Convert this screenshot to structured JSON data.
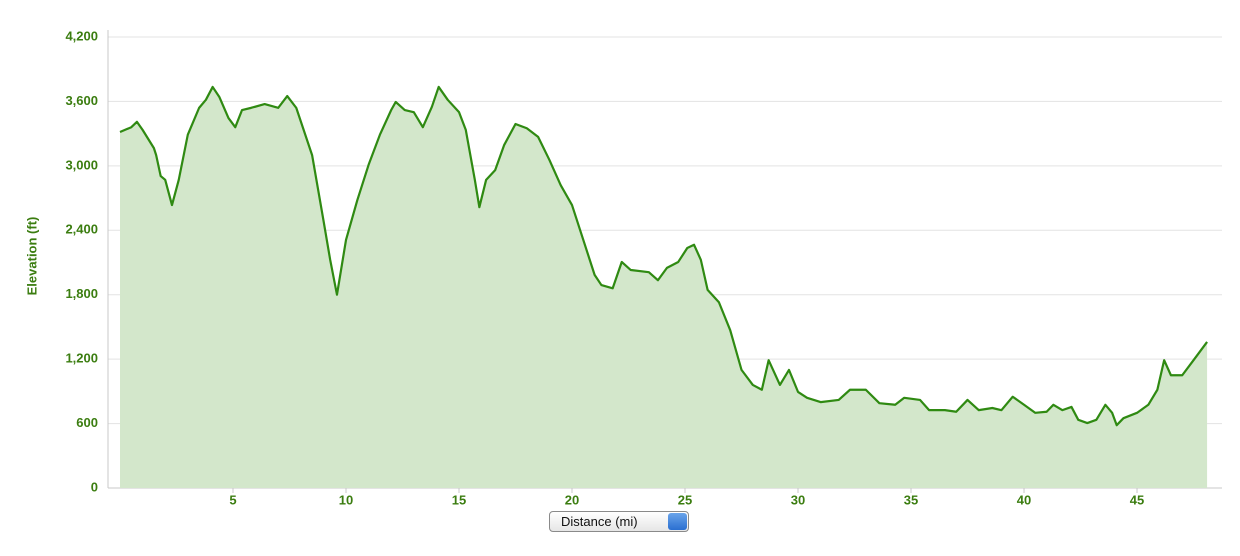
{
  "chart_data": {
    "type": "area",
    "ylabel": "Elevation (ft)",
    "xlabel": "Distance (mi)",
    "xlim": [
      0,
      48.76
    ],
    "ylim": [
      0,
      4200
    ],
    "xticks": [
      5,
      10,
      15,
      20,
      25,
      30,
      35,
      40,
      45
    ],
    "yticks": [
      0,
      {
        "value": 600,
        "label": "600"
      },
      {
        "value": 1200,
        "label": "1,200"
      },
      {
        "value": 1800,
        "label": "1,800"
      },
      {
        "value": 2400,
        "label": "2,400"
      },
      {
        "value": 3000,
        "label": "3,000"
      },
      {
        "value": 3600,
        "label": "3,600"
      },
      {
        "value": 4200,
        "label": "4,200"
      }
    ],
    "grid": true,
    "color": "#2f8a12",
    "fill": "#d3e7cb",
    "x": [
      0,
      0.5,
      0.75,
      1,
      1.5,
      1.6,
      1.8,
      2.0,
      2.3,
      2.6,
      3,
      3.5,
      3.8,
      4.1,
      4.4,
      4.8,
      5.1,
      5.4,
      5.8,
      6.4,
      7,
      7.4,
      7.8,
      8.5,
      9,
      9.3,
      9.6,
      10,
      10.5,
      11,
      11.5,
      12,
      12.2,
      12.6,
      13,
      13.4,
      13.8,
      14.1,
      14.5,
      15,
      15.3,
      15.7,
      15.9,
      16.2,
      16.6,
      17,
      17.5,
      18,
      18.5,
      19,
      19.5,
      20,
      20.5,
      21,
      21.3,
      21.8,
      22.2,
      22.6,
      23.4,
      23.8,
      24.2,
      24.7,
      25.1,
      25.4,
      25.7,
      26,
      26.5,
      27,
      27.5,
      28,
      28.4,
      28.7,
      29.2,
      29.6,
      30,
      30.4,
      31,
      31.8,
      32.3,
      33,
      33.6,
      34.3,
      34.7,
      35.4,
      35.8,
      36.5,
      37,
      37.5,
      38,
      38.6,
      39,
      39.5,
      40,
      40.5,
      41,
      41.3,
      41.7,
      42.1,
      42.4,
      42.8,
      43.2,
      43.6,
      43.9,
      44.1,
      44.4,
      45,
      45.5,
      45.9,
      46.2,
      46.5,
      47,
      47.5,
      48.1
    ],
    "values": [
      3315,
      3360,
      3410,
      3335,
      3165,
      3100,
      2905,
      2870,
      2635,
      2870,
      3290,
      3540,
      3615,
      3735,
      3640,
      3445,
      3360,
      3520,
      3540,
      3575,
      3540,
      3650,
      3540,
      3100,
      2495,
      2125,
      1800,
      2310,
      2680,
      3010,
      3290,
      3520,
      3595,
      3520,
      3500,
      3360,
      3550,
      3735,
      3615,
      3500,
      3335,
      2870,
      2615,
      2870,
      2960,
      3195,
      3390,
      3350,
      3270,
      3055,
      2820,
      2635,
      2310,
      1985,
      1890,
      1860,
      2105,
      2030,
      2010,
      1935,
      2050,
      2105,
      2235,
      2265,
      2125,
      1845,
      1730,
      1470,
      1100,
      960,
      915,
      1190,
      960,
      1100,
      895,
      840,
      800,
      820,
      915,
      915,
      790,
      775,
      840,
      820,
      725,
      725,
      710,
      820,
      725,
      745,
      725,
      850,
      775,
      700,
      710,
      775,
      725,
      755,
      635,
      605,
      635,
      775,
      700,
      585,
      650,
      700,
      775,
      915,
      1190,
      1050,
      1050,
      1190,
      1360
    ]
  }
}
